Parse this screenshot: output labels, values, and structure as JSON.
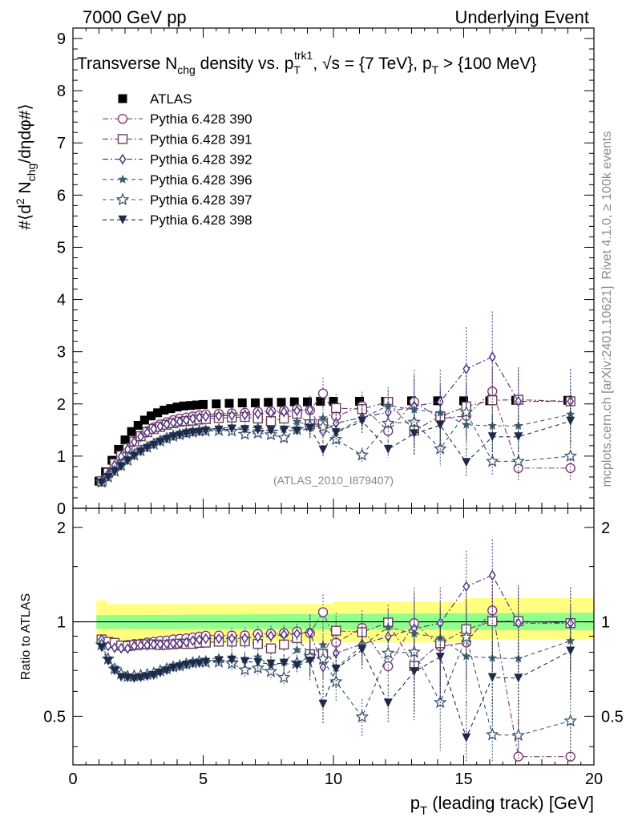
{
  "header": {
    "left": "7000 GeV pp",
    "right": "Underlying Event"
  },
  "side_labels": {
    "rivet": "Rivet 4.1.0, ≥ 100k events",
    "mcplots": "mcplots.cern.ch [arXiv:2401.10621]"
  },
  "watermark": "(ATLAS_2010_I879407)",
  "colors": {
    "data": "#000000",
    "390": "#7a3b73",
    "391": "#6b3f55",
    "392": "#4a2a80",
    "396": "#3c5f6e",
    "397": "#3a5570",
    "398": "#1e2a4a",
    "band_outer": "#ffff80",
    "band_inner": "#90ff90"
  },
  "chart_data": [
    {
      "type": "scatter",
      "panel": "main",
      "title": "Transverse N_chg density vs. p_T^trk1, √s = {7 TeV}, p_T > {100 MeV}",
      "title_parts": {
        "a": "Transverse N",
        "sub1": "chg",
        "b": " density vs. p",
        "sub2": "T",
        "sup2": "trk1",
        "c": ", √s = {7 TeV}, p",
        "sub3": "T",
        "d": " > {100 MeV}"
      },
      "ylabel": "#⟨d² N_chg/dηdφ#⟩",
      "ylabel_parts": {
        "a": "#⟨d",
        "sup": "2",
        "b": " N",
        "sub": "chg",
        "c": "/dηdφ#⟩"
      },
      "xlim": [
        0,
        20
      ],
      "ylim": [
        0,
        9.2
      ],
      "yticks": [
        "0",
        "1",
        "2",
        "3",
        "4",
        "5",
        "6",
        "7",
        "8",
        "9"
      ],
      "legend_position": "top-left",
      "series": [
        {
          "name": "ATLAS",
          "marker": "square-filled",
          "line": "none",
          "x": [
            1.0,
            1.25,
            1.5,
            1.75,
            2.0,
            2.25,
            2.5,
            2.75,
            3.0,
            3.25,
            3.5,
            3.75,
            4.0,
            4.25,
            4.5,
            4.75,
            5.0,
            5.5,
            6.0,
            6.5,
            7.0,
            7.5,
            8.0,
            8.5,
            9.0,
            9.5,
            10.0,
            11.0,
            12.0,
            13.0,
            14.0,
            15.0,
            16.0,
            17.0,
            19.0
          ],
          "y": [
            0.52,
            0.7,
            0.92,
            1.13,
            1.31,
            1.47,
            1.59,
            1.69,
            1.77,
            1.83,
            1.88,
            1.91,
            1.94,
            1.96,
            1.97,
            1.98,
            1.99,
            2.0,
            2.01,
            2.02,
            2.02,
            2.03,
            2.03,
            2.04,
            2.04,
            2.05,
            2.05,
            2.05,
            2.05,
            2.06,
            2.06,
            2.06,
            2.06,
            2.07,
            2.07
          ]
        },
        {
          "name": "Pythia 6.428 390",
          "marker": "circle-open",
          "line": "dash-dot",
          "x": [
            1.1,
            1.35,
            1.6,
            1.85,
            2.1,
            2.35,
            2.6,
            2.85,
            3.1,
            3.35,
            3.6,
            3.85,
            4.1,
            4.35,
            4.6,
            4.85,
            5.1,
            5.6,
            6.1,
            6.6,
            7.1,
            7.6,
            8.1,
            8.6,
            9.1,
            9.6,
            10.1,
            11.1,
            12.1,
            13.1,
            14.1,
            15.1,
            16.1,
            17.1,
            19.1
          ],
          "y": [
            0.52,
            0.68,
            0.86,
            1.01,
            1.16,
            1.29,
            1.39,
            1.48,
            1.55,
            1.61,
            1.65,
            1.69,
            1.72,
            1.74,
            1.76,
            1.78,
            1.8,
            1.81,
            1.82,
            1.83,
            1.85,
            1.86,
            1.87,
            1.9,
            1.88,
            2.2,
            1.76,
            1.96,
            1.48,
            2.04,
            1.72,
            1.77,
            2.24,
            0.77,
            0.77
          ]
        },
        {
          "name": "Pythia 6.428 391",
          "marker": "square-open",
          "line": "dash-dot",
          "x": [
            1.1,
            1.35,
            1.6,
            1.85,
            2.1,
            2.35,
            2.6,
            2.85,
            3.1,
            3.35,
            3.6,
            3.85,
            4.1,
            4.35,
            4.6,
            4.85,
            5.1,
            5.6,
            6.1,
            6.6,
            7.1,
            7.6,
            8.1,
            8.6,
            9.1,
            9.6,
            10.1,
            11.1,
            12.1,
            13.1,
            14.1,
            15.1,
            16.1,
            17.1,
            19.1
          ],
          "y": [
            0.52,
            0.68,
            0.86,
            1.01,
            1.15,
            1.28,
            1.38,
            1.46,
            1.52,
            1.56,
            1.6,
            1.63,
            1.66,
            1.67,
            1.68,
            1.7,
            1.71,
            1.73,
            1.74,
            1.75,
            1.72,
            1.67,
            1.72,
            1.81,
            1.61,
            1.62,
            1.92,
            1.9,
            2.04,
            1.49,
            1.76,
            1.95,
            2.07,
            2.08,
            2.05
          ]
        },
        {
          "name": "Pythia 6.428 392",
          "marker": "diamond-open",
          "line": "dash-dot",
          "x": [
            1.1,
            1.35,
            1.6,
            1.85,
            2.1,
            2.35,
            2.6,
            2.85,
            3.1,
            3.35,
            3.6,
            3.85,
            4.1,
            4.35,
            4.6,
            4.85,
            5.1,
            5.6,
            6.1,
            6.6,
            7.1,
            7.6,
            8.1,
            8.6,
            9.1,
            9.6,
            10.1,
            11.1,
            12.1,
            13.1,
            14.1,
            15.1,
            16.1,
            17.1,
            19.1
          ],
          "y": [
            0.52,
            0.66,
            0.83,
            0.99,
            1.13,
            1.27,
            1.37,
            1.45,
            1.52,
            1.57,
            1.61,
            1.64,
            1.66,
            1.69,
            1.72,
            1.74,
            1.76,
            1.77,
            1.78,
            1.79,
            1.81,
            1.83,
            1.85,
            1.87,
            1.89,
            1.47,
            1.63,
            1.74,
            1.84,
            1.96,
            2.04,
            2.67,
            2.9,
            2.05,
            2.05
          ]
        },
        {
          "name": "Pythia 6.428 396",
          "marker": "star-filled",
          "line": "dashed",
          "x": [
            1.1,
            1.35,
            1.6,
            1.85,
            2.1,
            2.35,
            2.6,
            2.85,
            3.1,
            3.35,
            3.6,
            3.85,
            4.1,
            4.35,
            4.6,
            4.85,
            5.1,
            5.6,
            6.1,
            6.6,
            7.1,
            7.6,
            8.1,
            8.6,
            9.1,
            9.6,
            10.1,
            11.1,
            12.1,
            13.1,
            14.1,
            15.1,
            16.1,
            17.1,
            19.1
          ],
          "y": [
            0.5,
            0.6,
            0.72,
            0.82,
            0.92,
            1.01,
            1.09,
            1.16,
            1.23,
            1.29,
            1.34,
            1.39,
            1.43,
            1.46,
            1.48,
            1.5,
            1.51,
            1.54,
            1.55,
            1.53,
            1.56,
            1.47,
            1.51,
            1.66,
            1.59,
            1.73,
            1.46,
            1.72,
            1.97,
            1.89,
            1.83,
            1.6,
            1.58,
            1.58,
            1.8
          ]
        },
        {
          "name": "Pythia 6.428 397",
          "marker": "star-open",
          "line": "dashed",
          "x": [
            1.1,
            1.35,
            1.6,
            1.85,
            2.1,
            2.35,
            2.6,
            2.85,
            3.1,
            3.35,
            3.6,
            3.85,
            4.1,
            4.35,
            4.6,
            4.85,
            5.1,
            5.6,
            6.1,
            6.6,
            7.1,
            7.6,
            8.1,
            8.6,
            9.1,
            9.6,
            10.1,
            11.1,
            12.1,
            13.1,
            14.1,
            15.1,
            16.1,
            17.1,
            19.1
          ],
          "y": [
            0.5,
            0.6,
            0.71,
            0.82,
            0.92,
            1.02,
            1.1,
            1.17,
            1.23,
            1.29,
            1.34,
            1.38,
            1.41,
            1.44,
            1.46,
            1.48,
            1.48,
            1.49,
            1.48,
            1.42,
            1.44,
            1.41,
            1.35,
            1.51,
            1.58,
            1.56,
            1.32,
            1.02,
            1.63,
            1.65,
            1.14,
            1.84,
            0.9,
            0.9,
            1.0
          ]
        },
        {
          "name": "Pythia 6.428 398",
          "marker": "triangle-down-filled",
          "line": "dashed",
          "x": [
            1.1,
            1.35,
            1.6,
            1.85,
            2.1,
            2.35,
            2.6,
            2.85,
            3.1,
            3.35,
            3.6,
            3.85,
            4.1,
            4.35,
            4.6,
            4.85,
            5.1,
            5.6,
            6.1,
            6.6,
            7.1,
            7.6,
            8.1,
            8.6,
            9.1,
            9.6,
            10.1,
            11.1,
            12.1,
            13.1,
            14.1,
            15.1,
            16.1,
            17.1,
            19.1
          ],
          "y": [
            0.49,
            0.59,
            0.7,
            0.8,
            0.91,
            1.0,
            1.08,
            1.15,
            1.21,
            1.27,
            1.32,
            1.37,
            1.4,
            1.43,
            1.45,
            1.46,
            1.48,
            1.5,
            1.52,
            1.51,
            1.5,
            1.49,
            1.5,
            1.48,
            1.53,
            1.12,
            1.45,
            1.67,
            1.13,
            1.43,
            1.59,
            0.88,
            1.37,
            1.37,
            1.67
          ]
        }
      ]
    },
    {
      "type": "scatter",
      "panel": "ratio",
      "ylabel": "Ratio to ATLAS",
      "xlabel": "p_T (leading track) [GeV]",
      "xlabel_parts": {
        "a": "p",
        "sub": "T",
        "b": " (leading track) [GeV]"
      },
      "xlim": [
        0,
        20
      ],
      "ylim": [
        0.35,
        2.3
      ],
      "xticks": [
        "0",
        "5",
        "10",
        "15",
        "20"
      ],
      "yticks": [
        "0.5",
        "1",
        "2"
      ],
      "reference_line": 1.0,
      "band_outer": {
        "x": [
          0.9,
          1.3,
          1.3,
          10,
          10,
          15,
          15,
          20
        ],
        "low": [
          0.85,
          0.85,
          0.86,
          0.86,
          0.86,
          0.86,
          0.88,
          0.88
        ],
        "high": [
          1.17,
          1.17,
          1.14,
          1.14,
          1.16,
          1.16,
          1.19,
          1.19
        ]
      },
      "band_inner": {
        "x": [
          0.9,
          20
        ],
        "low": [
          0.95,
          0.94
        ],
        "high": [
          1.05,
          1.07
        ]
      }
    }
  ]
}
